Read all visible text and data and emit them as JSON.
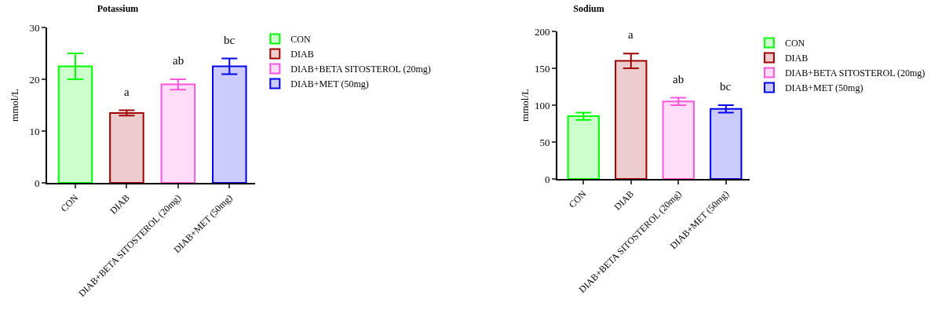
{
  "chart_data": [
    {
      "type": "bar",
      "title": "Potassium",
      "ylabel": "mmol/L",
      "categories": [
        "CON",
        "DIAB",
        "DIAB+BETA SITOSTEROL (20mg)",
        "DIAB+MET (50mg)"
      ],
      "series": [
        {
          "name": "CON",
          "color": "#00ff00",
          "values": [
            22.5,
            null,
            null,
            null
          ],
          "errors": [
            2.5,
            null,
            null,
            null
          ]
        },
        {
          "name": "DIAB",
          "color": "#a00000",
          "values": [
            null,
            13.5,
            null,
            null
          ],
          "errors": [
            null,
            0.5,
            null,
            null
          ],
          "value_labels": [
            null,
            "a",
            null,
            null
          ]
        },
        {
          "name": "DIAB+BETA SITOSTEROL (20mg)",
          "color": "#ff55dd",
          "values": [
            null,
            null,
            19,
            null
          ],
          "errors": [
            null,
            null,
            1,
            null
          ],
          "value_labels": [
            null,
            null,
            "ab",
            null
          ]
        },
        {
          "name": "DIAB+MET (50mg)",
          "color": "#0000ee",
          "values": [
            null,
            null,
            null,
            22.5
          ],
          "errors": [
            null,
            null,
            null,
            1.5
          ],
          "value_labels": [
            null,
            null,
            null,
            "bc"
          ]
        }
      ],
      "ylim": [
        0,
        30
      ],
      "yticks": [
        0,
        10,
        20,
        30
      ],
      "grid": false,
      "legend": "right"
    },
    {
      "type": "bar",
      "title": "Sodium",
      "ylabel": "mmol/L",
      "categories": [
        "CON",
        "DIAB",
        "DIAB+BETA SITOSTEROL (20mg)",
        "DIAB+MET (50mg)"
      ],
      "series": [
        {
          "name": "CON",
          "color": "#00ff00",
          "values": [
            85,
            null,
            null,
            null
          ],
          "errors": [
            5,
            null,
            null,
            null
          ]
        },
        {
          "name": "DIAB",
          "color": "#a00000",
          "values": [
            null,
            160,
            null,
            null
          ],
          "errors": [
            null,
            10,
            null,
            null
          ],
          "value_labels": [
            null,
            "a",
            null,
            null
          ]
        },
        {
          "name": "DIAB+BETA SITOSTEROL (20mg)",
          "color": "#ff55dd",
          "values": [
            null,
            null,
            105,
            null
          ],
          "errors": [
            null,
            null,
            5,
            null
          ],
          "value_labels": [
            null,
            null,
            "ab",
            null
          ]
        },
        {
          "name": "DIAB+MET (50mg)",
          "color": "#0000ee",
          "values": [
            null,
            null,
            null,
            95
          ],
          "errors": [
            null,
            null,
            null,
            5
          ],
          "value_labels": [
            null,
            null,
            null,
            "bc"
          ]
        }
      ],
      "ylim": [
        0,
        200
      ],
      "yticks": [
        0,
        50,
        100,
        150,
        200
      ],
      "grid": false,
      "legend": "right"
    }
  ]
}
